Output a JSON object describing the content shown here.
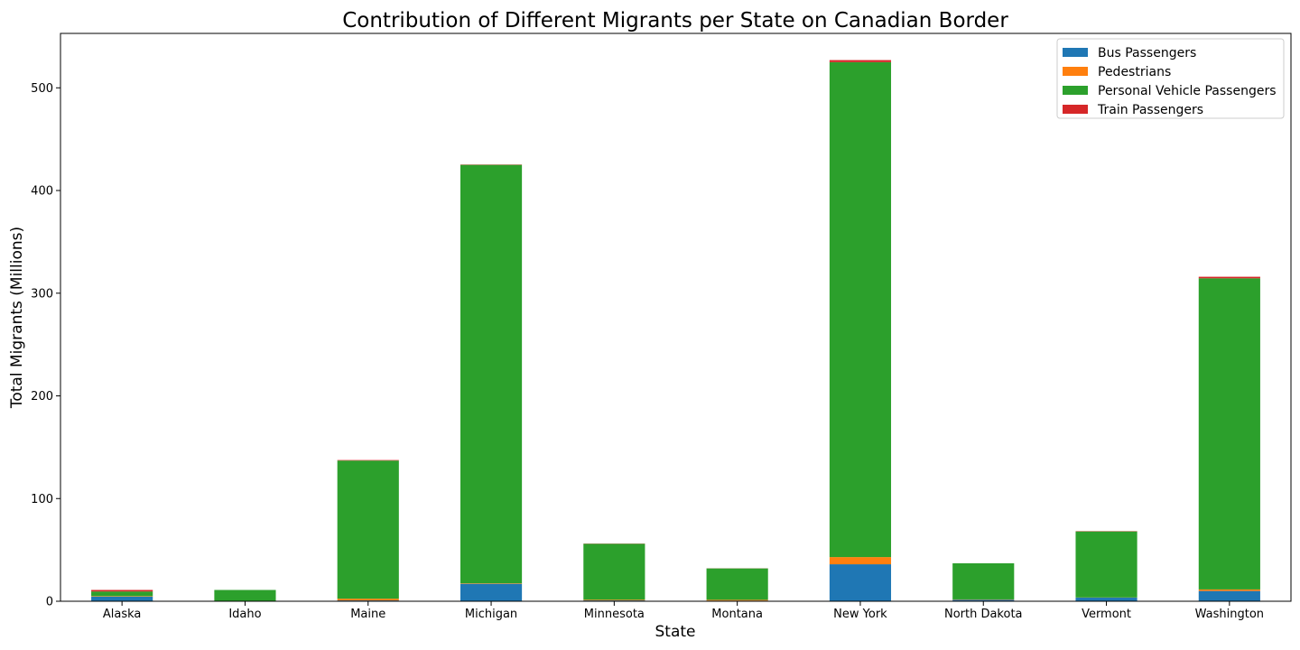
{
  "chart_data": {
    "type": "bar",
    "stacked": true,
    "title": "Contribution of Different Migrants per State on Canadian Border",
    "xlabel": "State",
    "ylabel": "Total Migrants (Millions)",
    "ylim": [
      0,
      553
    ],
    "yticks": [
      0,
      100,
      200,
      300,
      400,
      500
    ],
    "grid": false,
    "legend_position": "top-right",
    "categories": [
      "Alaska",
      "Idaho",
      "Maine",
      "Michigan",
      "Minnesota",
      "Montana",
      "New York",
      "North Dakota",
      "Vermont",
      "Washington"
    ],
    "series": [
      {
        "name": "Bus Passengers",
        "color": "#1f77b4",
        "values": [
          4.5,
          0.2,
          0.8,
          17,
          0.8,
          0.6,
          36,
          1.5,
          3.5,
          10
        ]
      },
      {
        "name": "Pedestrians",
        "color": "#ff7f0e",
        "values": [
          0.5,
          0.1,
          1.7,
          0.5,
          0.7,
          0.8,
          7,
          0.3,
          0.2,
          1.5
        ]
      },
      {
        "name": "Personal Vehicle Passengers",
        "color": "#2ca02c",
        "values": [
          4.5,
          10.7,
          134.5,
          407.5,
          54.5,
          30.6,
          482,
          35.2,
          64.3,
          303
        ]
      },
      {
        "name": "Train Passengers",
        "color": "#d62728",
        "values": [
          1.5,
          0,
          0.5,
          0.3,
          0.2,
          0.1,
          2,
          0,
          0.3,
          1.5
        ]
      }
    ]
  }
}
